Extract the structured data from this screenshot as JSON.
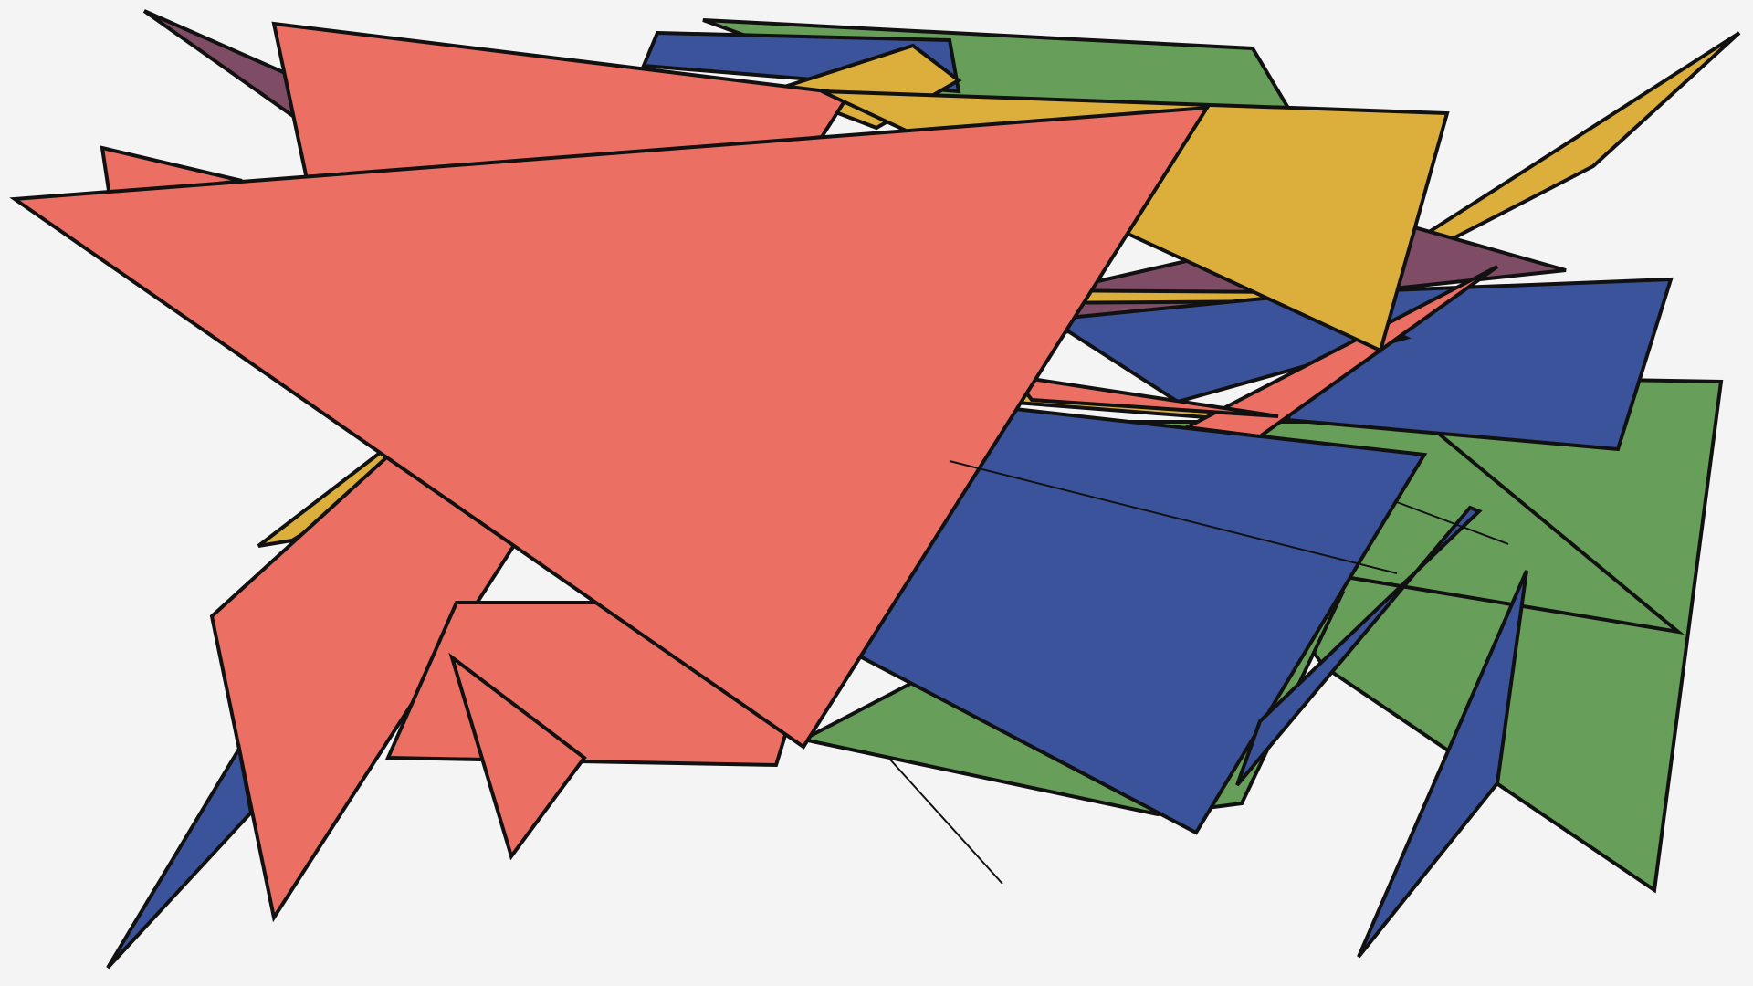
{
  "palette": {
    "background": "#f4f4f4",
    "outline": "#111111",
    "salmon": "#ec6f64",
    "blue": "#3a539b",
    "green": "#679e59",
    "gold": "#dcaf3c",
    "plum": "#7e4c65"
  }
}
